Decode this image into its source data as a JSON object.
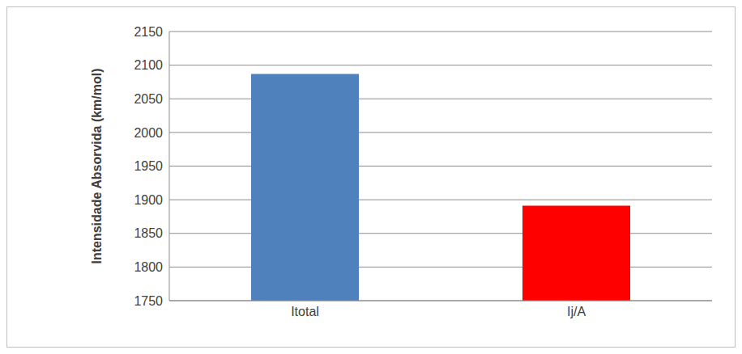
{
  "chart_data": {
    "type": "bar",
    "categories": [
      "Itotal",
      "Ij/A"
    ],
    "values": [
      2087,
      1891
    ],
    "colors": [
      "#4f81bd",
      "#ff0000"
    ],
    "y_label": "Intensidade Absorvida (km/mol)",
    "ylim": [
      1750,
      2150
    ],
    "yticks": [
      1750,
      1800,
      1850,
      1900,
      1950,
      2000,
      2050,
      2100,
      2150
    ],
    "grid": true
  }
}
